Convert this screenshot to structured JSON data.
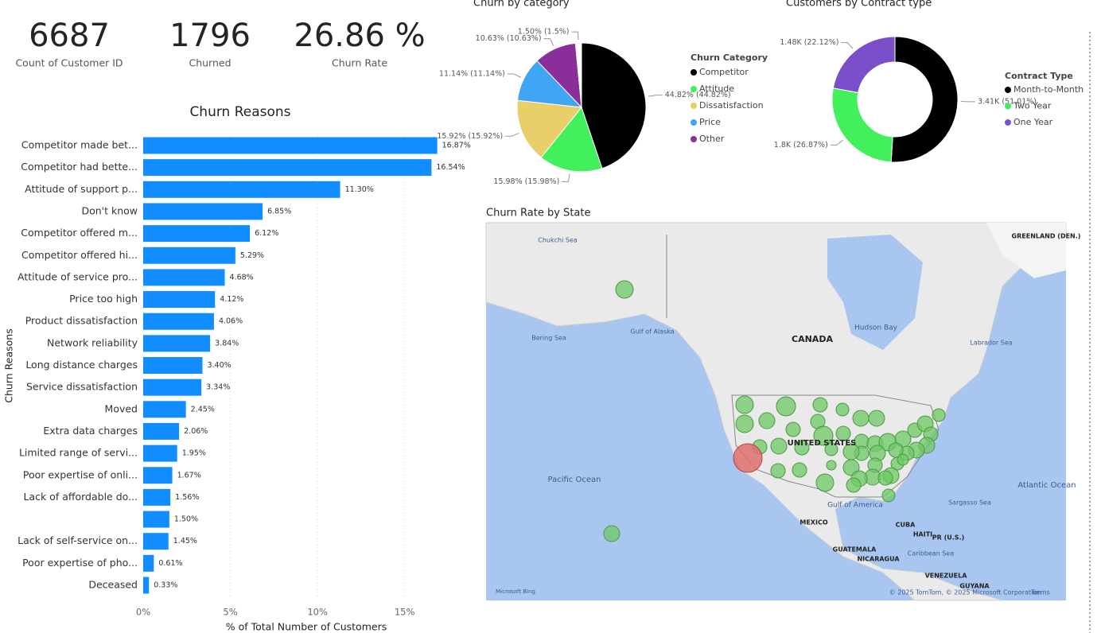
{
  "kpis": [
    {
      "value": "6687",
      "label": "Count of Customer ID"
    },
    {
      "value": "1796",
      "label": "Churned"
    },
    {
      "value": "26.86 %",
      "label": "Churn Rate"
    }
  ],
  "chart_data": [
    {
      "type": "bar",
      "orientation": "horizontal",
      "title": "Churn Reasons",
      "x_label": "% of Total Number of Customers",
      "y_label": "Churn Reasons",
      "categories": [
        "Competitor made bet...",
        "Competitor had bette...",
        "Attitude of support p...",
        "Don't know",
        "Competitor offered m...",
        "Competitor offered hi...",
        "Attitude of service pro...",
        "Price too high",
        "Product dissatisfaction",
        "Network reliability",
        "Long distance charges",
        "Service dissatisfaction",
        "Moved",
        "Extra data charges",
        "Limited range of servi...",
        "Poor expertise of onli...",
        "Lack of affordable do...",
        null,
        "Lack of self-service on...",
        "Poor expertise of pho...",
        "Deceased"
      ],
      "values": [
        16.87,
        16.54,
        11.3,
        6.85,
        6.12,
        5.29,
        4.68,
        4.12,
        4.06,
        3.84,
        3.4,
        3.34,
        2.45,
        2.06,
        1.95,
        1.67,
        1.56,
        1.5,
        1.45,
        0.61,
        0.33
      ],
      "value_labels": [
        "16.87%",
        "16.54%",
        "11.30%",
        "6.85%",
        "6.12%",
        "5.29%",
        "4.68%",
        "4.12%",
        "4.06%",
        "3.84%",
        "3.40%",
        "3.34%",
        "2.45%",
        "2.06%",
        "1.95%",
        "1.67%",
        "1.56%",
        "1.50%",
        "1.45%",
        "0.61%",
        "0.33%"
      ],
      "color": "#118dff",
      "xlim": [
        0,
        17.8
      ],
      "xticks": [
        {
          "value": 0,
          "label": "0%"
        },
        {
          "value": 5,
          "label": "5%"
        },
        {
          "value": 10,
          "label": "10%"
        },
        {
          "value": 15,
          "label": "15%"
        }
      ],
      "grid": true
    },
    {
      "type": "pie",
      "title": "Churn by category",
      "legend_title": "Churn Category",
      "categories": [
        "Competitor",
        "Attitude",
        "Dissatisfaction",
        "Price",
        "Other",
        null
      ],
      "values": [
        44.82,
        15.98,
        15.92,
        11.14,
        10.63,
        1.5
      ],
      "value_labels": [
        "44.82% (44.82%)",
        "15.98% (15.98%)",
        "15.92% (15.92%)",
        "11.14% (11.14%)",
        "10.63% (10.63%)",
        "1.50% (1.5%)"
      ],
      "colors": [
        "#000000",
        "#41f05a",
        "#e8cf6a",
        "#3fa5f5",
        "#8a2e99",
        "#ffffff"
      ]
    },
    {
      "type": "donut",
      "title": "Customers by Contract type",
      "legend_title": "Contract Type",
      "categories": [
        "Month-to-Month",
        "Two Year",
        "One Year"
      ],
      "values": [
        3410,
        1800,
        1480
      ],
      "value_labels": [
        "3.41K (51.01%)",
        "1.8K (26.87%)",
        "1.48K (22.12%)"
      ],
      "colors": [
        "#000000",
        "#41f05a",
        "#7b4fc9"
      ]
    },
    {
      "type": "map",
      "title": "Churn Rate by State",
      "labels": [
        "Chukchi Sea",
        "GREENLAND (DEN.)",
        "Bering Sea",
        "Gulf of Alaska",
        "CANADA",
        "Hudson Bay",
        "Labrador Sea",
        "UNITED STATES",
        "Pacific Ocean",
        "Atlantic Ocean",
        "Gulf of America",
        "Sargasso Sea",
        "MEXICO",
        "CUBA",
        "HAITI",
        "PR (U.S.)",
        "GUATEMALA",
        "Caribbean Sea",
        "NICARAGUA",
        "VENEZUELA",
        "GUYANA",
        "Microsoft Bing",
        "© 2025 TomTom, © 2025 Microsoft Corporation",
        "Terms"
      ]
    }
  ]
}
